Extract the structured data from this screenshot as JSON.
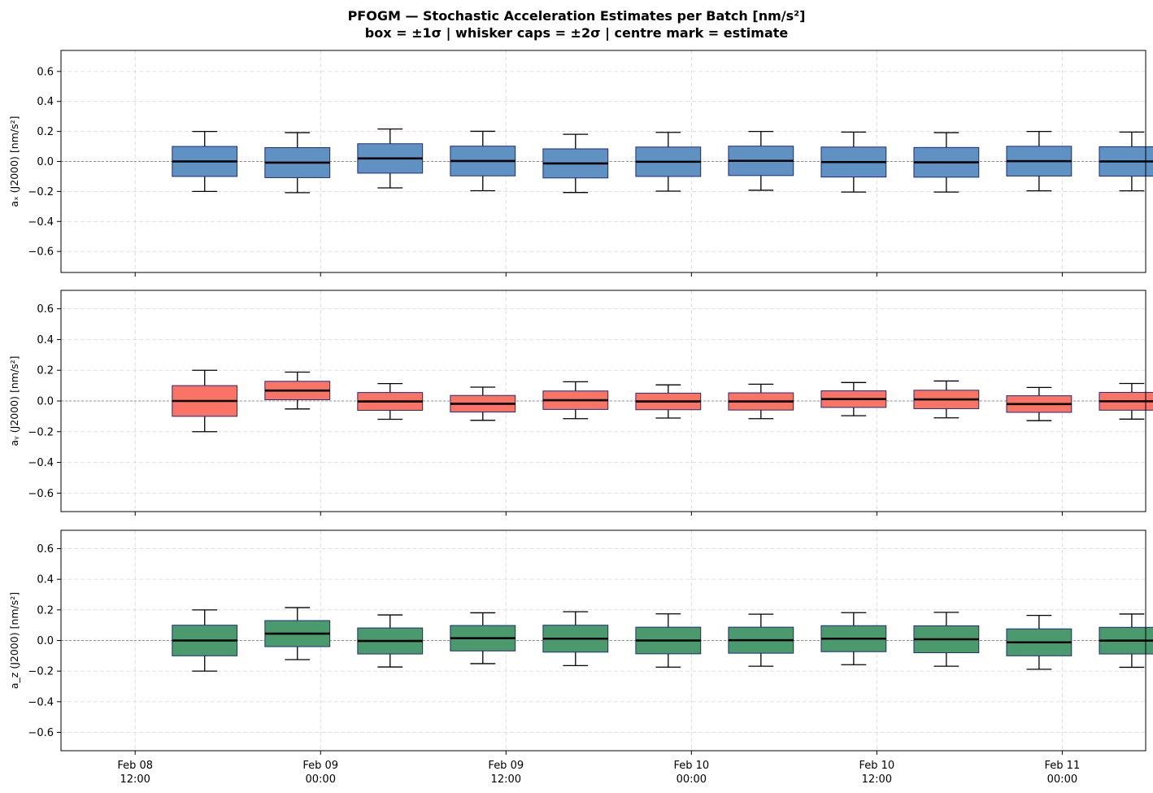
{
  "figure": {
    "title_line1": "PFOGM — Stochastic Acceleration Estimates per Batch [nm/s²]",
    "title_line2": "box = ±1σ  |  whisker caps = ±2σ  |  centre mark = estimate"
  },
  "chart_data": [
    {
      "type": "box",
      "ylabel": "aₓ (J2000) [nm/s²]",
      "ylim": [
        -0.74,
        0.74
      ],
      "yticks": [
        -0.6,
        -0.4,
        -0.2,
        0.0,
        0.2,
        0.4,
        0.6
      ],
      "color": "#5f92c3",
      "xlim": [
        -0.4,
        5.45
      ],
      "xticks": [
        0,
        1,
        2,
        3,
        4,
        5
      ],
      "xtick_labels": [
        [
          "Feb 08",
          "12:00"
        ],
        [
          "Feb 09",
          "00:00"
        ],
        [
          "Feb 09",
          "12:00"
        ],
        [
          "Feb 10",
          "00:00"
        ],
        [
          "Feb 10",
          "12:00"
        ],
        [
          "Feb 11",
          "00:00"
        ]
      ],
      "grid": true,
      "zero_line": true,
      "batch_x": [
        0.375,
        0.875,
        1.375,
        1.875,
        2.375,
        2.875,
        3.375,
        3.875,
        4.375,
        4.875,
        5.375
      ],
      "estimates": [
        0.0,
        -0.008,
        0.02,
        0.003,
        -0.013,
        -0.002,
        0.004,
        -0.004,
        -0.006,
        0.002,
        0.0
      ],
      "sigma": [
        0.1,
        0.1,
        0.098,
        0.099,
        0.097,
        0.098,
        0.098,
        0.1,
        0.099,
        0.099,
        0.098
      ]
    },
    {
      "type": "box",
      "ylabel": "aᵧ (J2000) [nm/s²]",
      "ylim": [
        -0.72,
        0.72
      ],
      "yticks": [
        -0.6,
        -0.4,
        -0.2,
        0.0,
        0.2,
        0.4,
        0.6
      ],
      "color": "#fa7466",
      "xlim": [
        -0.4,
        5.45
      ],
      "xticks": [
        0,
        1,
        2,
        3,
        4,
        5
      ],
      "xtick_labels": [
        [
          "Feb 08",
          "12:00"
        ],
        [
          "Feb 09",
          "00:00"
        ],
        [
          "Feb 09",
          "12:00"
        ],
        [
          "Feb 10",
          "00:00"
        ],
        [
          "Feb 10",
          "12:00"
        ],
        [
          "Feb 11",
          "00:00"
        ]
      ],
      "grid": true,
      "zero_line": true,
      "batch_x": [
        0.375,
        0.875,
        1.375,
        1.875,
        2.375,
        2.875,
        3.375,
        3.875,
        4.375,
        4.875,
        5.375
      ],
      "estimates": [
        0.0,
        0.068,
        -0.003,
        -0.018,
        0.005,
        -0.003,
        -0.003,
        0.012,
        0.01,
        -0.02,
        -0.002
      ],
      "sigma": [
        0.1,
        0.06,
        0.058,
        0.054,
        0.06,
        0.054,
        0.056,
        0.054,
        0.06,
        0.054,
        0.058
      ]
    },
    {
      "type": "box",
      "ylabel": "a_z (J2000) [nm/s²]",
      "ylim": [
        -0.72,
        0.72
      ],
      "yticks": [
        -0.6,
        -0.4,
        -0.2,
        0.0,
        0.2,
        0.4,
        0.6
      ],
      "color": "#4a9a6e",
      "xlim": [
        -0.4,
        5.45
      ],
      "xticks": [
        0,
        1,
        2,
        3,
        4,
        5
      ],
      "xtick_labels": [
        [
          "Feb 08",
          "12:00"
        ],
        [
          "Feb 09",
          "00:00"
        ],
        [
          "Feb 09",
          "12:00"
        ],
        [
          "Feb 10",
          "00:00"
        ],
        [
          "Feb 10",
          "12:00"
        ],
        [
          "Feb 11",
          "00:00"
        ]
      ],
      "grid": true,
      "zero_line": true,
      "batch_x": [
        0.375,
        0.875,
        1.375,
        1.875,
        2.375,
        2.875,
        3.375,
        3.875,
        4.375,
        4.875,
        5.375
      ],
      "estimates": [
        0.0,
        0.045,
        -0.003,
        0.015,
        0.012,
        0.0,
        0.002,
        0.012,
        0.008,
        -0.012,
        -0.001
      ],
      "sigma": [
        0.1,
        0.085,
        0.085,
        0.083,
        0.088,
        0.087,
        0.085,
        0.085,
        0.088,
        0.088,
        0.087
      ]
    }
  ]
}
